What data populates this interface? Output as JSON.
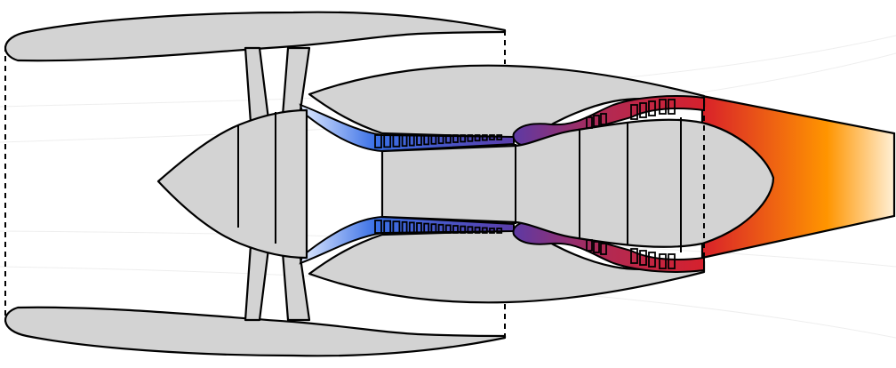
{
  "diagram": {
    "colors": {
      "background": "#ffffff",
      "body_fill": "#d3d3d3",
      "outline": "#000000",
      "cold_flow": "#3a70e6",
      "cold_flow_light": "#e8f0ff",
      "compressor_exit": "#5b3aa6",
      "combustor": "#c8283a",
      "hot_exhaust": "#d8202a",
      "exhaust_mid": "#ff9500",
      "exhaust_tail": "#fff0d6"
    },
    "components": [
      {
        "id": "nacelle-upper",
        "icon": "nacelle-shape"
      },
      {
        "id": "nacelle-lower",
        "icon": "nacelle-shape"
      },
      {
        "id": "fan",
        "icon": "fan-blades"
      },
      {
        "id": "spinner",
        "icon": "nose-cone"
      },
      {
        "id": "low-pressure-compressor",
        "icon": "compressor-stages"
      },
      {
        "id": "high-pressure-compressor",
        "icon": "compressor-stages"
      },
      {
        "id": "combustion-chamber",
        "icon": "combustor"
      },
      {
        "id": "turbine",
        "icon": "turbine-stages"
      },
      {
        "id": "exhaust-nozzle",
        "icon": "exhaust-plume"
      }
    ]
  }
}
